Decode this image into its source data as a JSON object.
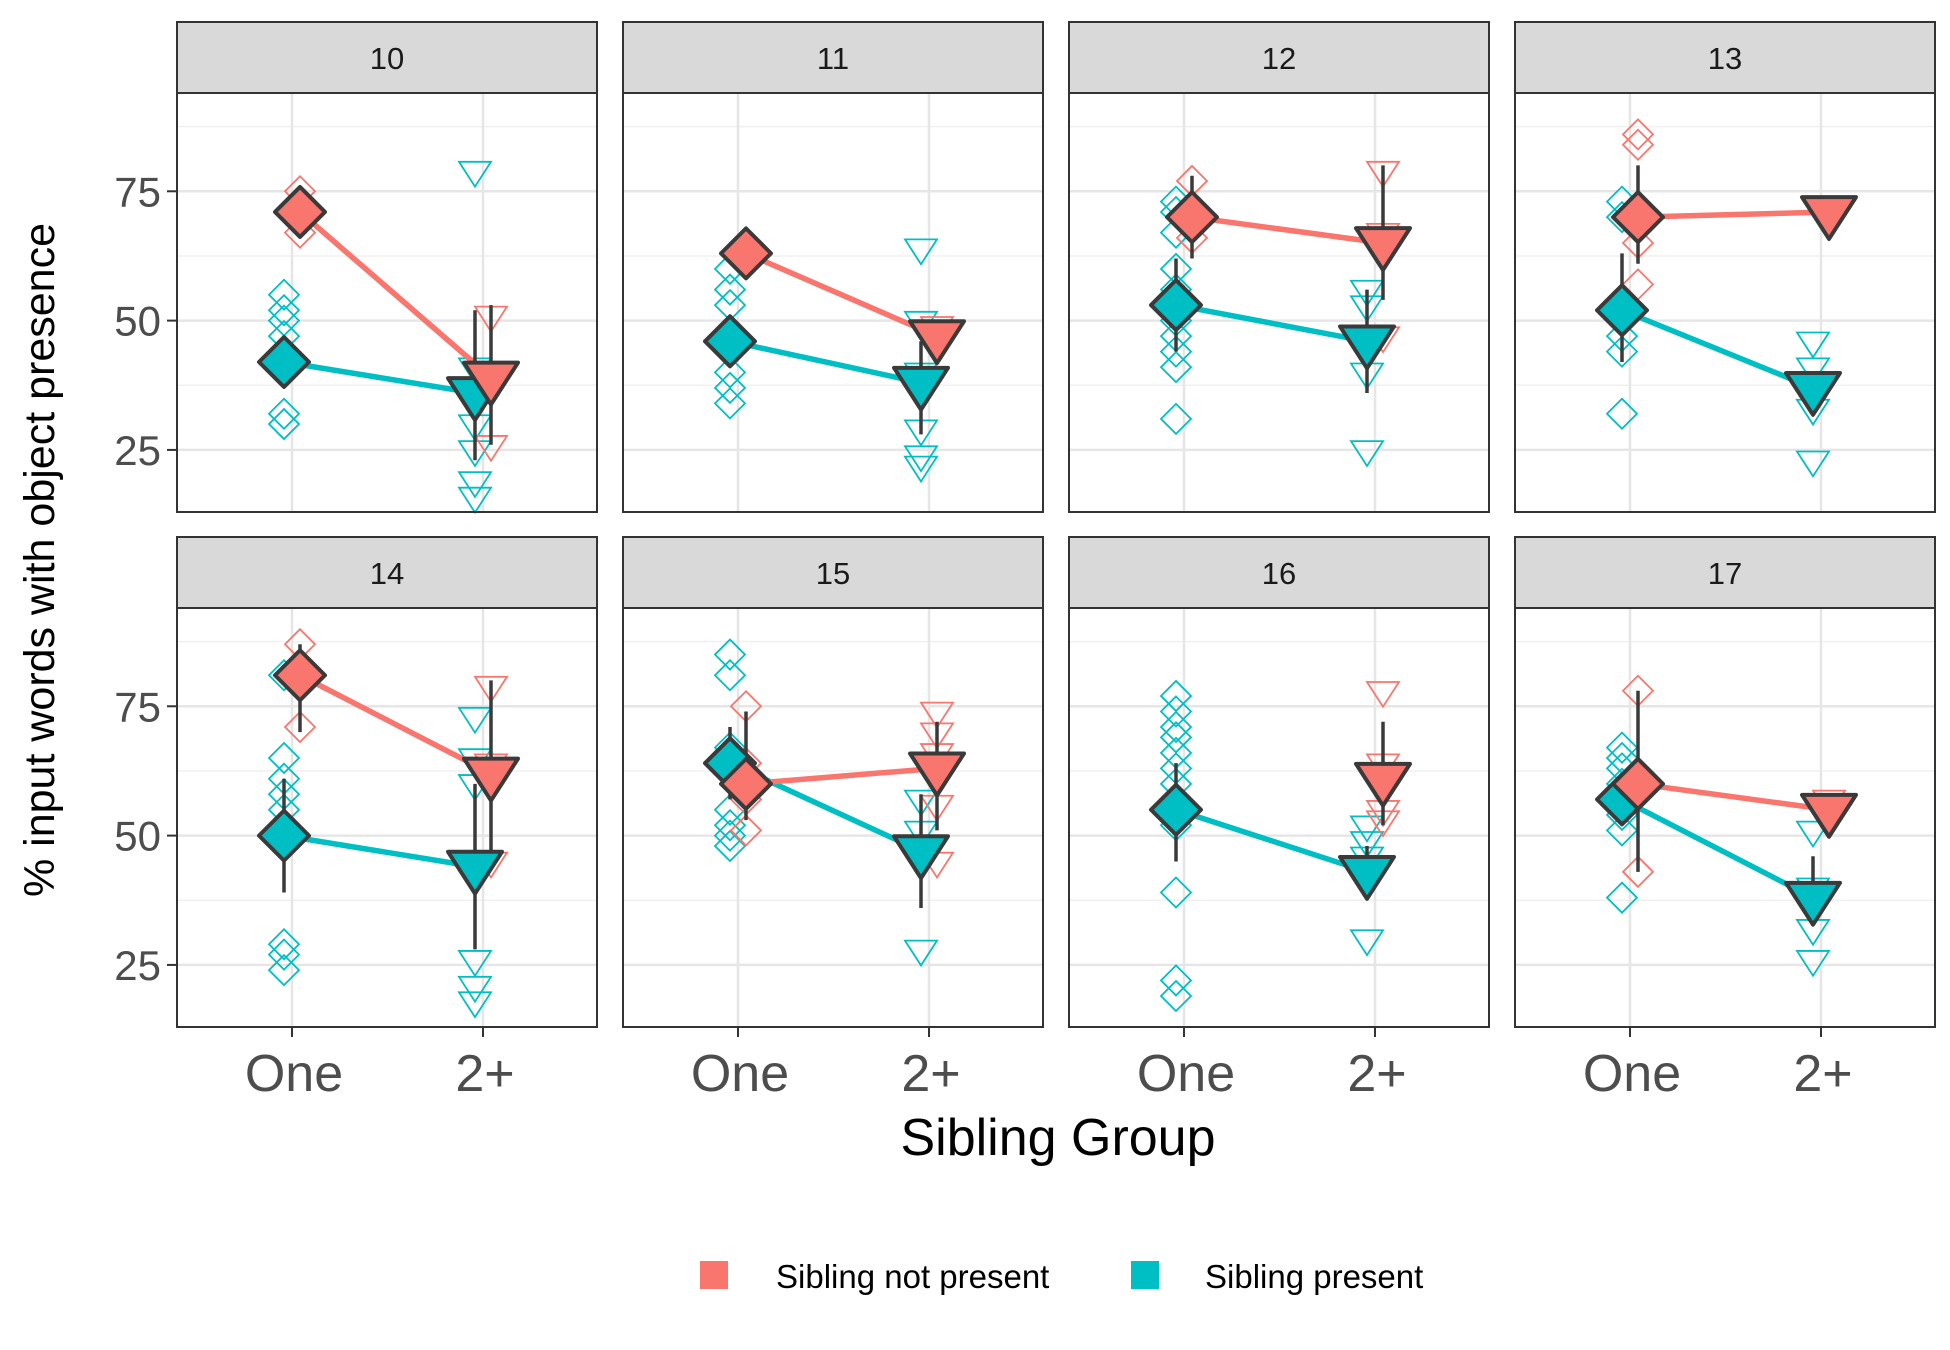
{
  "chart_data": {
    "type": "scatter",
    "subtype": "faceted point-range plot with connecting lines",
    "xlabel": "Sibling Group",
    "ylabel": "% input words with object presence",
    "categories": [
      "One",
      "2+"
    ],
    "yticks": [
      25,
      50,
      75
    ],
    "ylim": [
      13,
      94
    ],
    "grid": true,
    "legend": {
      "position": "bottom",
      "entries": [
        {
          "name": "Sibling not present",
          "color": "#F8766D"
        },
        {
          "name": "Sibling present",
          "color": "#00BFC4"
        }
      ]
    },
    "colors": {
      "not_present": "#F8766D",
      "present": "#00BFC4",
      "outline": "#3a3a3a",
      "strip": "#d9d9d9"
    },
    "shapes": {
      "One": "diamond",
      "2+": "down-triangle"
    },
    "panels": [
      {
        "label": "10",
        "not_present": {
          "one": {
            "mean": 71,
            "raw": [
              75,
              71,
              67
            ]
          },
          "two": {
            "mean": 39,
            "err": [
              26,
              53
            ],
            "raw": [
              51,
              39,
              26
            ]
          }
        },
        "present": {
          "one": {
            "mean": 42,
            "raw": [
              55,
              52,
              50,
              47,
              44,
              41,
              32,
              30
            ]
          },
          "two": {
            "mean": 36,
            "err": [
              23,
              52
            ],
            "raw": [
              79,
              41,
              36,
              30,
              25,
              19,
              16
            ]
          }
        }
      },
      {
        "label": "11",
        "not_present": {
          "one": {
            "mean": 63,
            "raw": [
              65,
              61
            ]
          },
          "two": {
            "mean": 47,
            "raw": [
              49,
              45
            ]
          }
        },
        "present": {
          "one": {
            "mean": 46,
            "raw": [
              60,
              56,
              53,
              48,
              40,
              37,
              34
            ]
          },
          "two": {
            "mean": 38,
            "err": [
              28,
              46
            ],
            "raw": [
              64,
              50,
              40,
              29,
              24,
              22
            ]
          }
        }
      },
      {
        "label": "12",
        "not_present": {
          "one": {
            "mean": 70,
            "err": [
              62,
              78
            ],
            "raw": [
              77,
              72,
              66
            ]
          },
          "two": {
            "mean": 65,
            "err": [
              54,
              80
            ],
            "raw": [
              79,
              67,
              47
            ]
          }
        },
        "present": {
          "one": {
            "mean": 53,
            "err": [
              44,
              62
            ],
            "raw": [
              73,
              71,
              67,
              60,
              56,
              50,
              47,
              44,
              41,
              31
            ]
          },
          "two": {
            "mean": 46,
            "err": [
              36,
              56
            ],
            "raw": [
              56,
              53,
              47,
              40,
              25
            ]
          }
        }
      },
      {
        "label": "13",
        "not_present": {
          "one": {
            "mean": 70,
            "err": [
              61,
              80
            ],
            "raw": [
              86,
              84,
              68,
              65,
              57
            ]
          },
          "two": {
            "mean": 71,
            "raw": [
              71
            ]
          }
        },
        "present": {
          "one": {
            "mean": 52,
            "err": [
              42,
              63
            ],
            "raw": [
              73,
              70,
              53,
              50,
              47,
              44,
              32
            ]
          },
          "two": {
            "mean": 37,
            "err": [
              33,
              40
            ],
            "raw": [
              46,
              41,
              38,
              33,
              23
            ]
          }
        }
      },
      {
        "label": "14",
        "not_present": {
          "one": {
            "mean": 81,
            "err": [
              70,
              87
            ],
            "raw": [
              87,
              80,
              71
            ]
          },
          "two": {
            "mean": 62,
            "err": [
              44,
              80
            ],
            "raw": [
              79,
              64,
              45
            ]
          }
        },
        "present": {
          "one": {
            "mean": 50,
            "err": [
              39,
              61
            ],
            "raw": [
              81,
              65,
              61,
              58,
              55,
              52,
              48,
              29,
              27,
              24
            ]
          },
          "two": {
            "mean": 44,
            "err": [
              28,
              60
            ],
            "raw": [
              73,
              65,
              60,
              44,
              26,
              21,
              18
            ]
          }
        }
      },
      {
        "label": "15",
        "not_present": {
          "one": {
            "mean": 60,
            "err": [
              53,
              74
            ],
            "raw": [
              75,
              64,
              57,
              51
            ]
          },
          "two": {
            "mean": 63,
            "err": [
              51,
              72
            ],
            "raw": [
              74,
              70,
              66,
              56,
              45
            ]
          }
        },
        "present": {
          "one": {
            "mean": 64,
            "err": [
              57,
              71
            ],
            "raw": [
              85,
              81,
              67,
              64,
              55,
              52,
              50,
              48
            ]
          },
          "two": {
            "mean": 47,
            "err": [
              36,
              58
            ],
            "raw": [
              57,
              51,
              48,
              28
            ]
          }
        }
      },
      {
        "label": "16",
        "not_present": {
          "one": null,
          "two": {
            "mean": 61,
            "err": [
              52,
              72
            ],
            "raw": [
              78,
              64,
              55,
              53
            ]
          }
        },
        "present": {
          "one": {
            "mean": 55,
            "err": [
              45,
              64
            ],
            "raw": [
              77,
              74,
              71,
              69,
              66,
              63,
              60,
              56,
              52,
              39,
              22,
              19
            ]
          },
          "two": {
            "mean": 43,
            "err": [
              40,
              48
            ],
            "raw": [
              52,
              49,
              46,
              44,
              41,
              30
            ]
          }
        }
      },
      {
        "label": "17",
        "not_present": {
          "one": {
            "mean": 60,
            "err": [
              43,
              78
            ],
            "raw": [
              78,
              43
            ]
          },
          "two": {
            "mean": 55,
            "raw": [
              57,
              55,
              53
            ]
          }
        },
        "present": {
          "one": {
            "mean": 57,
            "err": [
              54,
              61
            ],
            "raw": [
              67,
              65,
              63,
              60,
              57,
              54,
              51,
              38
            ]
          },
          "two": {
            "mean": 38,
            "err": [
              33,
              46
            ],
            "raw": [
              51,
              40,
              36,
              32,
              26
            ]
          }
        }
      }
    ]
  }
}
